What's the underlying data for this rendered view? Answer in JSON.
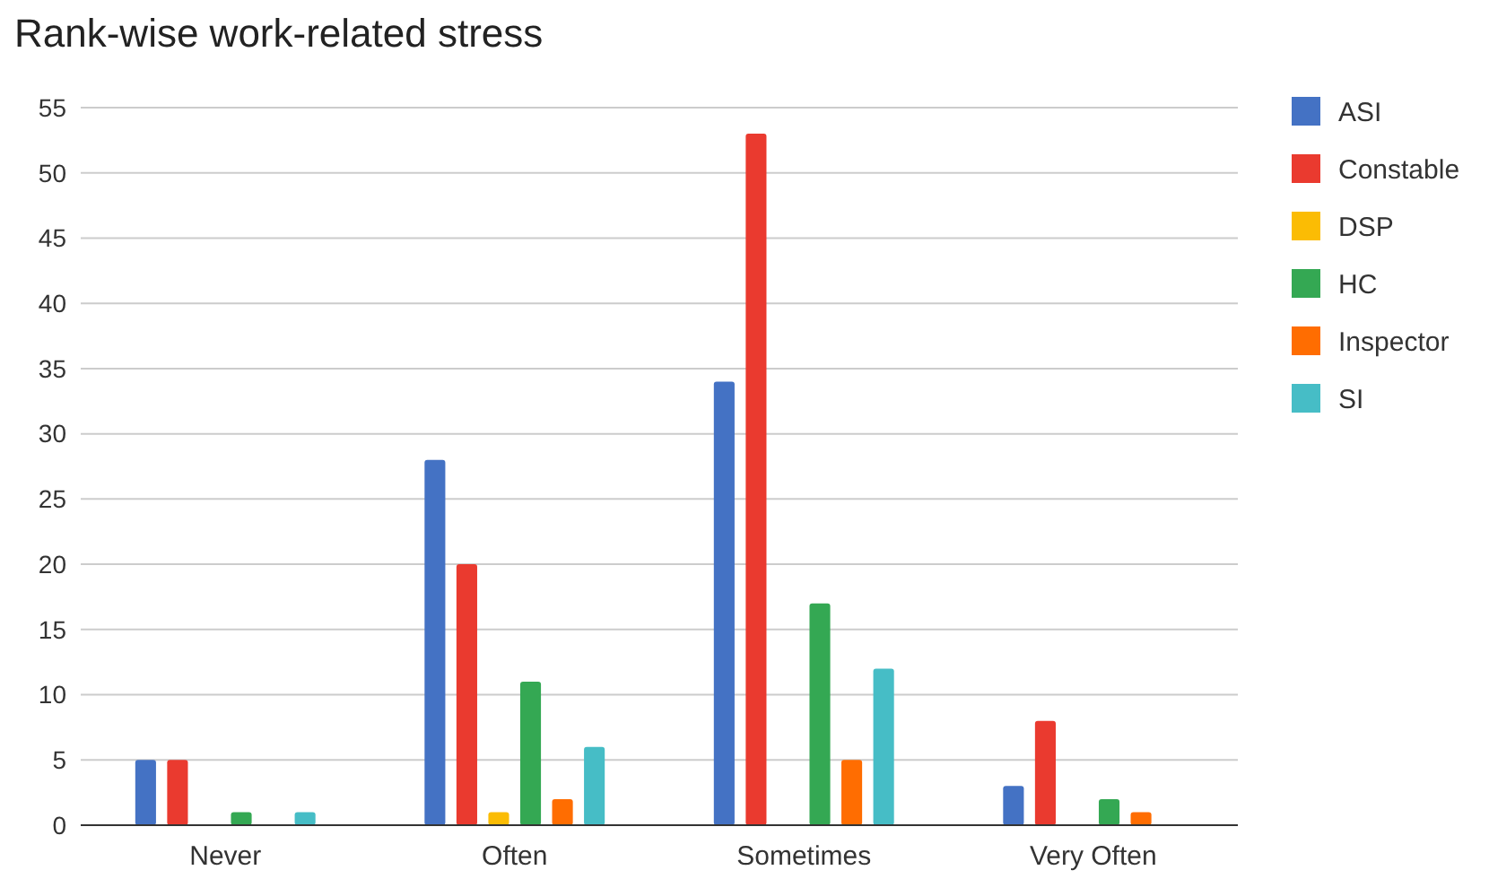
{
  "chart_data": {
    "type": "bar",
    "title": "Rank-wise work-related stress",
    "categories": [
      "Never",
      "Often",
      "Sometimes",
      "Very Often"
    ],
    "series": [
      {
        "name": "ASI",
        "color": "#4472c4",
        "values": [
          5,
          28,
          34,
          3
        ]
      },
      {
        "name": "Constable",
        "color": "#ea3a2f",
        "values": [
          5,
          20,
          53,
          8
        ]
      },
      {
        "name": "DSP",
        "color": "#fbbc04",
        "values": [
          0,
          1,
          0,
          0
        ]
      },
      {
        "name": "HC",
        "color": "#34a853",
        "values": [
          1,
          11,
          17,
          2
        ]
      },
      {
        "name": "Inspector",
        "color": "#ff6d01",
        "values": [
          0,
          2,
          5,
          1
        ]
      },
      {
        "name": "SI",
        "color": "#46bdc6",
        "values": [
          1,
          6,
          12,
          0
        ]
      }
    ],
    "ylim": [
      0,
      55
    ],
    "yticks": [
      0,
      5,
      10,
      15,
      20,
      25,
      30,
      35,
      40,
      45,
      50,
      55
    ],
    "grid": "y",
    "legend": "right"
  }
}
